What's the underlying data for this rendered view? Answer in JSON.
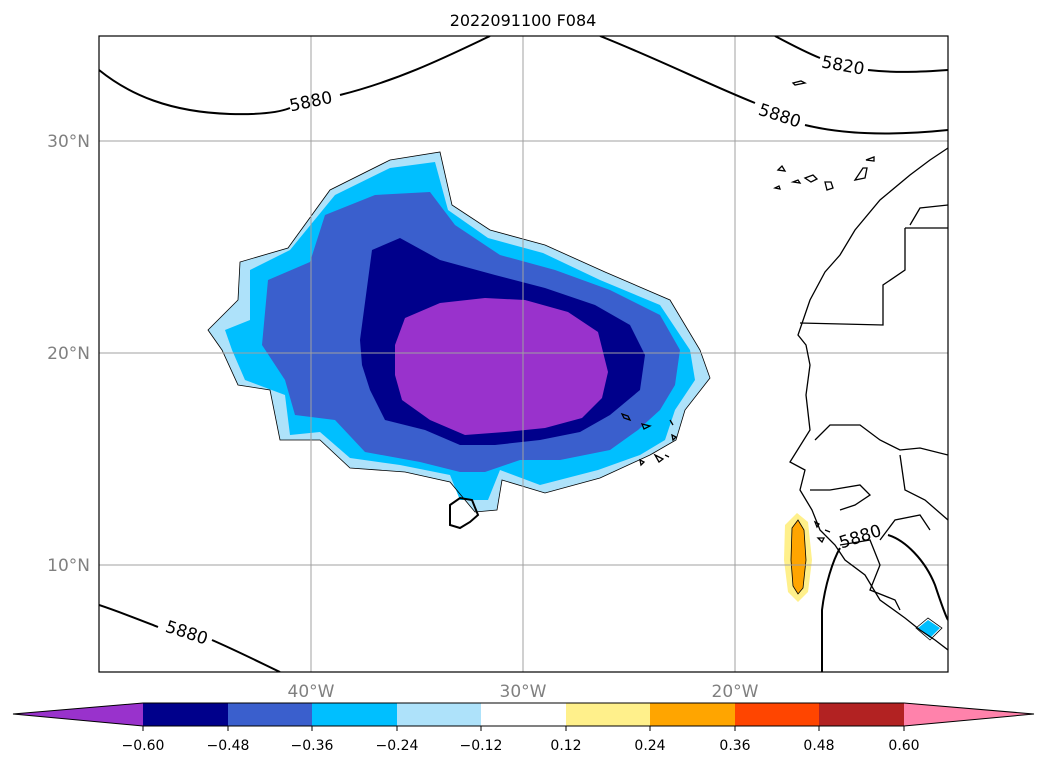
{
  "title": "2022091100 F084",
  "axes": {
    "lat_labels": [
      "30°N",
      "20°N",
      "10°N"
    ],
    "lon_labels": [
      "40°W",
      "30°W",
      "20°W"
    ],
    "gridline_color": "#a0a0a0",
    "tick_label_color": "#808080"
  },
  "contours": {
    "values_labeled": [
      "5880",
      "5820",
      "5880",
      "5880",
      "5880"
    ]
  },
  "colorbar": {
    "levels": [
      "−0.60",
      "−0.48",
      "−0.36",
      "−0.24",
      "−0.12",
      "0.12",
      "0.24",
      "0.36",
      "0.48",
      "0.60"
    ],
    "colors": [
      "#9932cc",
      "#00008b",
      "#3a5fcd",
      "#00bfff",
      "#aee2fa",
      "#ffffff",
      "#fff08b",
      "#ffa500",
      "#ff4500",
      "#b22222",
      "#ff82ab"
    ],
    "extend": "both"
  },
  "shading": {
    "purple": "#9932cc",
    "navy": "#00008b",
    "blue": "#3a5fcd",
    "cyan": "#00bfff",
    "lightblue": "#aee2fa",
    "yellow": "#fff08b",
    "orange": "#ffa500"
  }
}
